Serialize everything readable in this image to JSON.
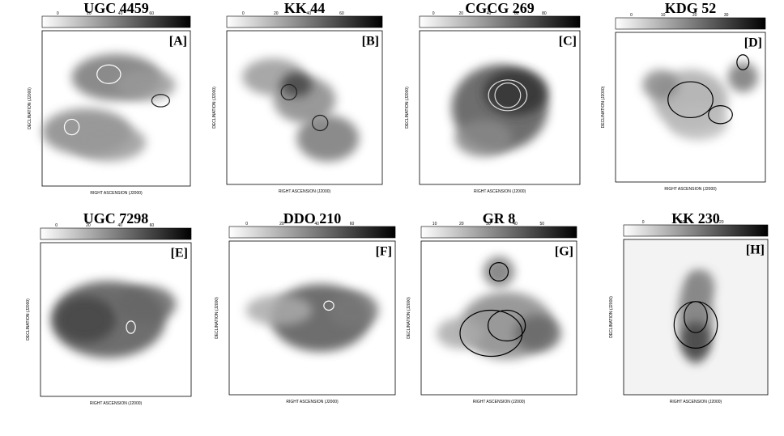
{
  "panels": [
    {
      "title": "UGC 4459",
      "letter": "[A]",
      "colorbar_ticks": [
        "0",
        "20",
        "40",
        "60"
      ],
      "xlabel": "RIGHT ASCENSION (J2000)",
      "ylabel": "DECLINATION (J2000)"
    },
    {
      "title": "KK 44",
      "letter": "[B]",
      "colorbar_ticks": [
        "0",
        "20",
        "40",
        "60"
      ],
      "xlabel": "RIGHT ASCENSION (J2000)",
      "ylabel": "DECLINATION (J2000)"
    },
    {
      "title": "CGCG 269",
      "letter": "[C]",
      "colorbar_ticks": [
        "0",
        "20",
        "40",
        "60",
        "80"
      ],
      "xlabel": "RIGHT ASCENSION (J2000)",
      "ylabel": "DECLINATION (J2000)"
    },
    {
      "title": "KDG 52",
      "letter": "[D]",
      "colorbar_ticks": [
        "0",
        "10",
        "20",
        "30"
      ],
      "xlabel": "RIGHT ASCENSION (J2000)",
      "ylabel": "DECLINATION (J2000)"
    },
    {
      "title": "UGC 7298",
      "letter": "[E]",
      "colorbar_ticks": [
        "0",
        "20",
        "40",
        "60"
      ],
      "xlabel": "RIGHT ASCENSION (J2000)",
      "ylabel": "DECLINATION (J2000)"
    },
    {
      "title": "DDO 210",
      "letter": "[F]",
      "colorbar_ticks": [
        "0",
        "20",
        "40",
        "60"
      ],
      "xlabel": "RIGHT ASCENSION (J2000)",
      "ylabel": "DECLINATION (J2000)"
    },
    {
      "title": "GR 8",
      "letter": "[G]",
      "colorbar_ticks": [
        "10",
        "20",
        "30",
        "40",
        "50"
      ],
      "xlabel": "RIGHT ASCENSION (J2000)",
      "ylabel": "DECLINATION (J2000)"
    },
    {
      "title": "KK 230",
      "letter": "[H]",
      "colorbar_ticks": [
        "0",
        "10",
        "20"
      ],
      "xlabel": "RIGHT ASCENSION (J2000)",
      "ylabel": "DECLINATION (J2000)"
    }
  ]
}
